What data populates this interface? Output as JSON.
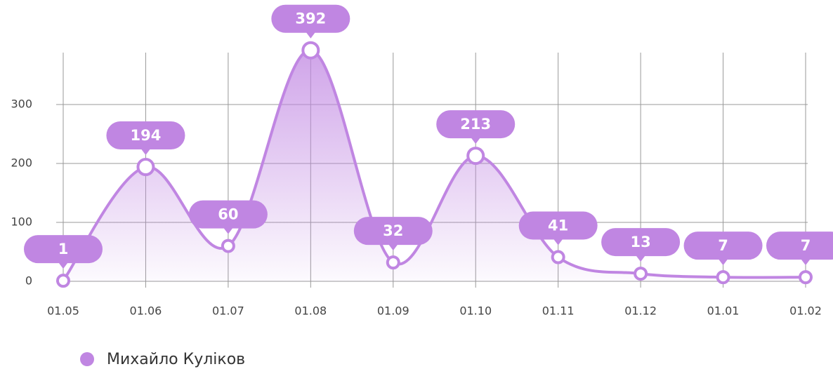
{
  "chart_data": {
    "type": "area",
    "categories": [
      "01.05",
      "01.06",
      "01.07",
      "01.08",
      "01.09",
      "01.10",
      "01.11",
      "01.12",
      "01.01",
      "01.02"
    ],
    "series": [
      {
        "name": "Михайло Куліков",
        "color": "#c086e2",
        "values": [
          1,
          194,
          60,
          392,
          32,
          213,
          41,
          13,
          7,
          7
        ]
      }
    ],
    "ylim": [
      0,
      400
    ],
    "yticks": [
      0,
      100,
      200,
      300
    ],
    "grid": true
  }
}
